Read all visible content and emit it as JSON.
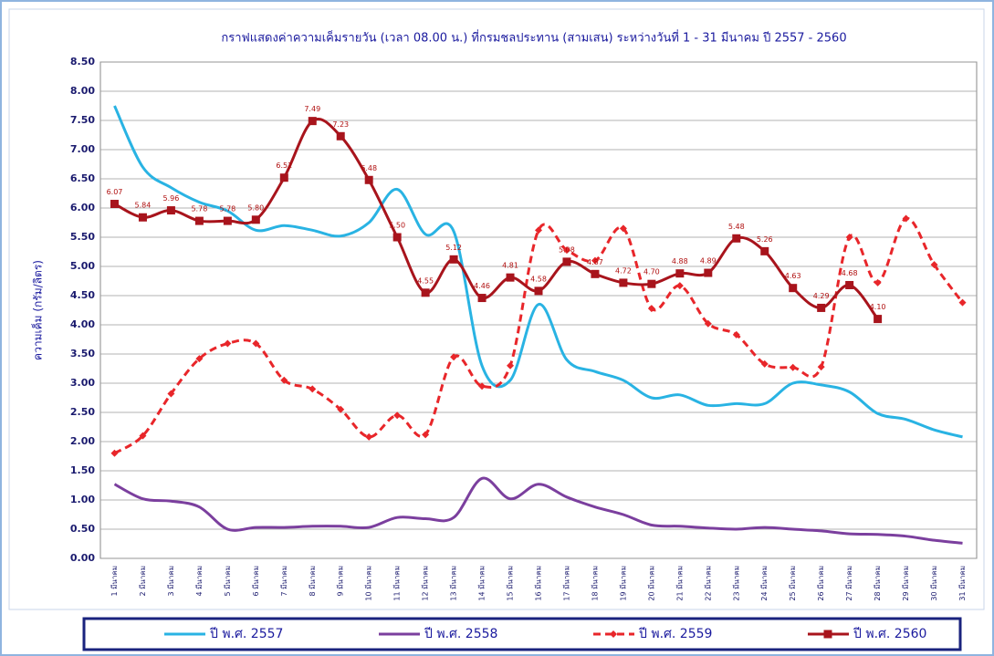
{
  "chart_data": {
    "type": "line",
    "title": "กราฟแสดงค่าความเค็มรายวัน (เวลา 08.00 น.) ที่กรมชลประทาน (สามเสน) ระหว่างวันที่ 1 - 31 มีนาคม ปี 2557 - 2560",
    "y_label": "ความเค็ม (กรัม/ลิตร)",
    "categories": [
      "1 มีนาคม",
      "2 มีนาคม",
      "3 มีนาคม",
      "4 มีนาคม",
      "5 มีนาคม",
      "6 มีนาคม",
      "7 มีนาคม",
      "8 มีนาคม",
      "9 มีนาคม",
      "10 มีนาคม",
      "11 มีนาคม",
      "12 มีนาคม",
      "13 มีนาคม",
      "14 มีนาคม",
      "15 มีนาคม",
      "16 มีนาคม",
      "17 มีนาคม",
      "18 มีนาคม",
      "19 มีนาคม",
      "20 มีนาคม",
      "21 มีนาคม",
      "22 มีนาคม",
      "23 มีนาคม",
      "24 มีนาคม",
      "25 มีนาคม",
      "26 มีนาคม",
      "27 มีนาคม",
      "28 มีนาคม",
      "29 มีนาคม",
      "30 มีนาคม",
      "31 มีนาคม"
    ],
    "ylim": [
      0,
      8.5
    ],
    "yticks": [
      {
        "value": 0,
        "label": "0.00"
      },
      {
        "value": 0.5,
        "label": "0.50"
      },
      {
        "value": 1,
        "label": "1.00"
      },
      {
        "value": 1.5,
        "label": "1.50"
      },
      {
        "value": 2,
        "label": "2.00"
      },
      {
        "value": 2.5,
        "label": "2.50"
      },
      {
        "value": 3,
        "label": "3.00"
      },
      {
        "value": 3.5,
        "label": "3.50"
      },
      {
        "value": 4,
        "label": "4.00"
      },
      {
        "value": 4.5,
        "label": "4.50"
      },
      {
        "value": 5,
        "label": "5.00"
      },
      {
        "value": 5.5,
        "label": "5.50"
      },
      {
        "value": 6,
        "label": "6.00"
      },
      {
        "value": 6.5,
        "label": "6.50"
      },
      {
        "value": 7,
        "label": "7.00"
      },
      {
        "value": 7.5,
        "label": "7.50"
      },
      {
        "value": 8,
        "label": "8.00"
      },
      {
        "value": 8.5,
        "label": "8.50"
      }
    ],
    "grid": true,
    "series": [
      {
        "name": "ปี พ.ศ. 2557",
        "color": "#29b3e3",
        "dashed": false,
        "marker": "none",
        "values": [
          7.75,
          6.7,
          6.35,
          6.1,
          5.95,
          5.62,
          5.7,
          5.62,
          5.52,
          5.75,
          6.32,
          5.55,
          5.6,
          3.3,
          3.05,
          4.35,
          3.4,
          3.2,
          3.05,
          2.75,
          2.8,
          2.62,
          2.65,
          2.65,
          3.0,
          2.97,
          2.85,
          2.48,
          2.38,
          2.2,
          2.08
        ]
      },
      {
        "name": "ปี พ.ศ. 2558",
        "color": "#7b3f9e",
        "dashed": false,
        "marker": "none",
        "values": [
          1.27,
          1.02,
          0.98,
          0.88,
          0.5,
          0.53,
          0.53,
          0.55,
          0.55,
          0.53,
          0.7,
          0.68,
          0.7,
          1.37,
          1.02,
          1.27,
          1.05,
          0.88,
          0.75,
          0.57,
          0.55,
          0.52,
          0.5,
          0.53,
          0.5,
          0.47,
          0.42,
          0.41,
          0.38,
          0.31,
          0.26
        ]
      },
      {
        "name": "ปี พ.ศ. 2559",
        "color": "#e8262a",
        "dashed": true,
        "marker": "diamond",
        "values": [
          1.8,
          2.1,
          2.82,
          3.42,
          3.68,
          3.68,
          3.05,
          2.9,
          2.55,
          2.08,
          2.45,
          2.12,
          3.45,
          2.95,
          3.3,
          5.62,
          5.28,
          5.1,
          5.65,
          4.28,
          4.67,
          4.02,
          3.83,
          3.33,
          3.27,
          3.28,
          5.5,
          4.72,
          5.82,
          5.03,
          4.38
        ]
      },
      {
        "name": "ปี พ.ศ. 2560",
        "color": "#a8141c",
        "dashed": false,
        "marker": "square",
        "values": [
          6.07,
          5.84,
          5.96,
          5.78,
          5.78,
          5.8,
          6.52,
          7.49,
          7.23,
          6.48,
          5.5,
          4.55,
          5.12,
          4.46,
          4.81,
          4.58,
          5.08,
          4.87,
          4.72,
          4.7,
          4.88,
          4.89,
          5.48,
          5.26,
          4.63,
          4.29,
          4.68,
          4.1,
          null,
          null,
          null
        ],
        "value_labels": [
          "6.07",
          "5.84",
          "5.96",
          "5.78",
          "5.78",
          "5.80",
          "6.52",
          "7.49",
          "7.23",
          "6.48",
          "5.50",
          "4.55",
          "5.12",
          "4.46",
          "4.81",
          "4.58",
          "5.08",
          "4.87",
          "4.72",
          "4.70",
          "4.88",
          "4.89",
          "5.48",
          "5.26",
          "4.63",
          "4.29",
          "4.68",
          "4.10",
          null,
          null,
          null
        ]
      }
    ]
  }
}
